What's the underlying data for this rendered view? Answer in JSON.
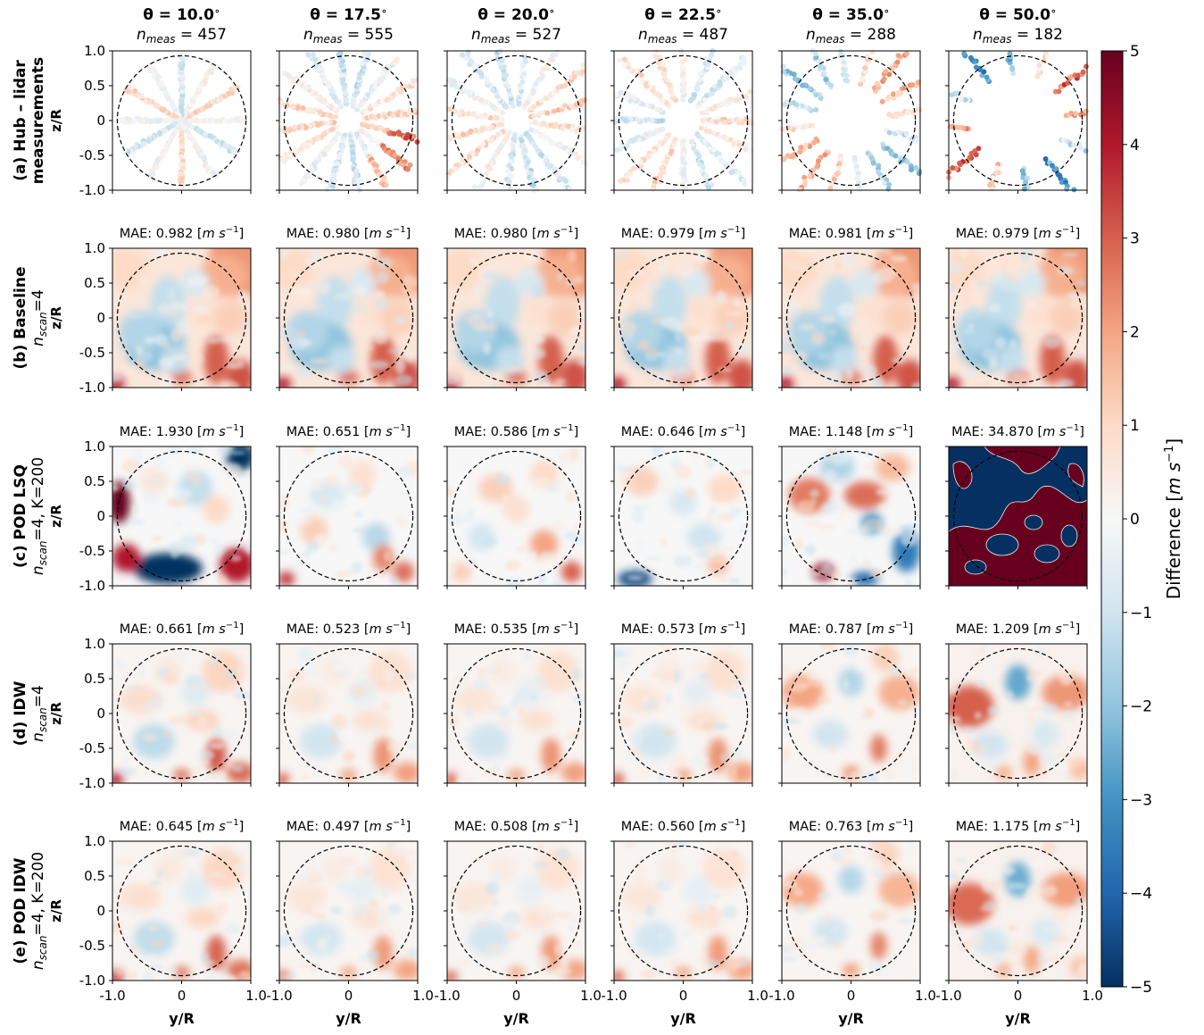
{
  "chart_data": {
    "type": "heatmap",
    "columns": [
      {
        "theta_label": "θ = 10.0°",
        "n_label": "n_meas = 457",
        "n_meas": 457
      },
      {
        "theta_label": "θ = 17.5°",
        "n_label": "n_meas = 555",
        "n_meas": 555
      },
      {
        "theta_label": "θ = 20.0°",
        "n_label": "n_meas = 527",
        "n_meas": 527
      },
      {
        "theta_label": "θ = 22.5°",
        "n_label": "n_meas = 487",
        "n_meas": 487
      },
      {
        "theta_label": "θ = 35.0°",
        "n_label": "n_meas = 288",
        "n_meas": 288
      },
      {
        "theta_label": "θ = 50.0°",
        "n_label": "n_meas = 182",
        "n_meas": 182
      }
    ],
    "rows": [
      {
        "line1": "(a) Hub – lidar",
        "line2": "measurements",
        "ylabel": "z/R",
        "mae": []
      },
      {
        "line1": "(b) Baseline",
        "line2": "n_scan=4",
        "ylabel": "z/R",
        "mae": [
          "MAE: 0.982 [m s⁻¹]",
          "MAE: 0.980 [m s⁻¹]",
          "MAE: 0.980 [m s⁻¹]",
          "MAE: 0.979 [m s⁻¹]",
          "MAE: 0.981 [m s⁻¹]",
          "MAE: 0.979 [m s⁻¹]"
        ]
      },
      {
        "line1": "(c) POD LSQ",
        "line2": "n_scan=4, K=200",
        "ylabel": "z/R",
        "mae": [
          "MAE: 1.930 [m s⁻¹]",
          "MAE: 0.651 [m s⁻¹]",
          "MAE: 0.586 [m s⁻¹]",
          "MAE: 0.646 [m s⁻¹]",
          "MAE: 1.148 [m s⁻¹]",
          "MAE: 34.870 [m s⁻¹]"
        ]
      },
      {
        "line1": "(d) IDW",
        "line2": "n_scan=4",
        "ylabel": "z/R",
        "mae": [
          "MAE: 0.661 [m s⁻¹]",
          "MAE: 0.523 [m s⁻¹]",
          "MAE: 0.535 [m s⁻¹]",
          "MAE: 0.573 [m s⁻¹]",
          "MAE: 0.787 [m s⁻¹]",
          "MAE: 1.209 [m s⁻¹]"
        ]
      },
      {
        "line1": "(e) POD IDW",
        "line2": "n_scan=4, K=200",
        "ylabel": "z/R",
        "mae": [
          "MAE: 0.645 [m s⁻¹]",
          "MAE: 0.497 [m s⁻¹]",
          "MAE: 0.508 [m s⁻¹]",
          "MAE: 0.560 [m s⁻¹]",
          "MAE: 0.763 [m s⁻¹]",
          "MAE: 1.175 [m s⁻¹]"
        ]
      }
    ],
    "mae_values": [
      [
        0.982,
        0.98,
        0.98,
        0.979,
        0.981,
        0.979
      ],
      [
        1.93,
        0.651,
        0.586,
        0.646,
        1.148,
        34.87
      ],
      [
        0.661,
        0.523,
        0.535,
        0.573,
        0.787,
        1.209
      ],
      [
        0.645,
        0.497,
        0.508,
        0.56,
        0.763,
        1.175
      ]
    ],
    "xlabel": "y/R",
    "xlim": [
      -1.0,
      1.0
    ],
    "ylim": [
      -1.0,
      1.0
    ],
    "xticks": [
      "-1.0",
      "0",
      "1.0"
    ],
    "yticks": [
      "1.0",
      "0.5",
      "0",
      "-0.5",
      "-1.0"
    ],
    "rotor_circle_radius": 0.93,
    "colorbar": {
      "label": "Difference [m s⁻¹]",
      "min": -5,
      "max": 5,
      "ticks": [
        "5",
        "4",
        "3",
        "2",
        "1",
        "0",
        "−1",
        "−2",
        "−3",
        "−4",
        "−5"
      ],
      "colormap": "RdBu_r",
      "low_color": "#053061",
      "mid_color": "#f7f7f7",
      "high_color": "#67001f"
    }
  }
}
